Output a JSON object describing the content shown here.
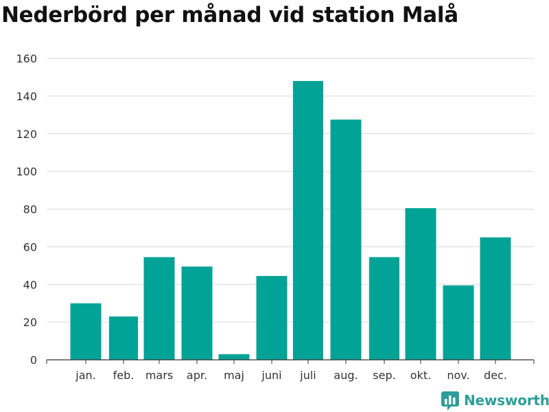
{
  "chart_data": {
    "type": "bar",
    "title": "Nederbörd per månad vid station Malå",
    "xlabel": "",
    "ylabel": "",
    "categories": [
      "jan.",
      "feb.",
      "mars",
      "apr.",
      "maj",
      "juni",
      "juli",
      "aug.",
      "sep.",
      "okt.",
      "nov.",
      "dec."
    ],
    "values": [
      30,
      23,
      54.5,
      49.5,
      3,
      44.5,
      148,
      127.5,
      54.5,
      80.5,
      39.5,
      65
    ],
    "ylim": [
      0,
      160
    ],
    "yticks": [
      0,
      20,
      40,
      60,
      80,
      100,
      120,
      140,
      160
    ],
    "grid": true,
    "bar_color": "#00a396",
    "legend": "none"
  },
  "branding": {
    "logo_text": "Newsworthy",
    "logo_icon": "newsworthy-bar-chart-icon",
    "logo_color": "#2e9e98"
  }
}
